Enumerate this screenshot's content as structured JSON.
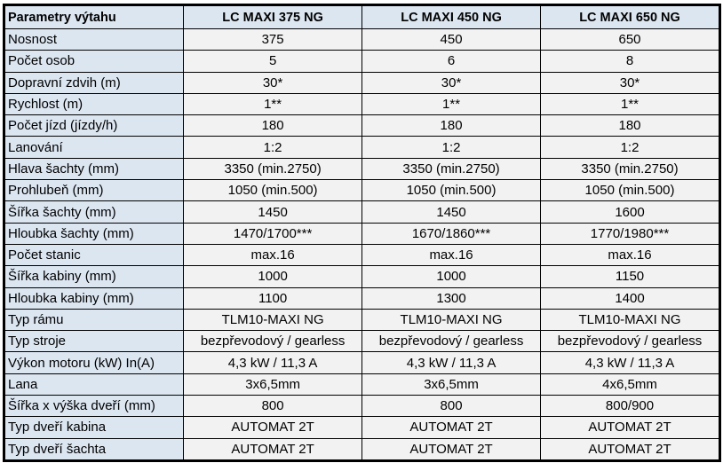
{
  "table": {
    "headers": [
      "Parametry výtahu",
      "LC MAXI 375 NG",
      "LC MAXI 450 NG",
      "LC MAXI 650 NG"
    ],
    "rows": [
      [
        "Nosnost",
        "375",
        "450",
        "650"
      ],
      [
        "Počet osob",
        "5",
        "6",
        "8"
      ],
      [
        "Dopravní zdvih (m)",
        "30*",
        "30*",
        "30*"
      ],
      [
        "Rychlost (m)",
        "1**",
        "1**",
        "1**"
      ],
      [
        "Počet jízd (jízdy/h)",
        "180",
        "180",
        "180"
      ],
      [
        "Lanování",
        "1:2",
        "1:2",
        "1:2"
      ],
      [
        "Hlava šachty (mm)",
        "3350 (min.2750)",
        "3350 (min.2750)",
        "3350 (min.2750)"
      ],
      [
        "Prohlubeň (mm)",
        "1050 (min.500)",
        "1050 (min.500)",
        "1050 (min.500)"
      ],
      [
        "Šířka šachty (mm)",
        "1450",
        "1450",
        "1600"
      ],
      [
        "Hloubka šachty (mm)",
        "1470/1700***",
        "1670/1860***",
        "1770/1980***"
      ],
      [
        "Počet stanic",
        "max.16",
        "max.16",
        "max.16"
      ],
      [
        "Šířka kabiny (mm)",
        "1000",
        "1000",
        "1150"
      ],
      [
        "Hloubka kabiny (mm)",
        "1100",
        "1300",
        "1400"
      ],
      [
        "Typ rámu",
        "TLM10-MAXI NG",
        "TLM10-MAXI NG",
        "TLM10-MAXI NG"
      ],
      [
        "Typ stroje",
        "bezpřevodový / gearless",
        "bezpřevodový / gearless",
        "bezpřevodový / gearless"
      ],
      [
        "Výkon motoru (kW) In(A)",
        "4,3 kW / 11,3 A",
        "4,3 kW / 11,3 A",
        "4,3 kW / 11,3 A"
      ],
      [
        "Lana",
        "3x6,5mm",
        "3x6,5mm",
        "4x6,5mm"
      ],
      [
        "Šířka x výška dveří (mm)",
        "800",
        "800",
        "800/900"
      ],
      [
        "Typ dveří kabina",
        "AUTOMAT 2T",
        "AUTOMAT 2T",
        "AUTOMAT 2T"
      ],
      [
        "Typ dveří šachta",
        "AUTOMAT 2T",
        "AUTOMAT 2T",
        "AUTOMAT 2T"
      ]
    ]
  },
  "colors": {
    "header_bg": "#dce6f1",
    "label_bg": "#dce6f1",
    "cell_bg": "#f2f2f2"
  }
}
